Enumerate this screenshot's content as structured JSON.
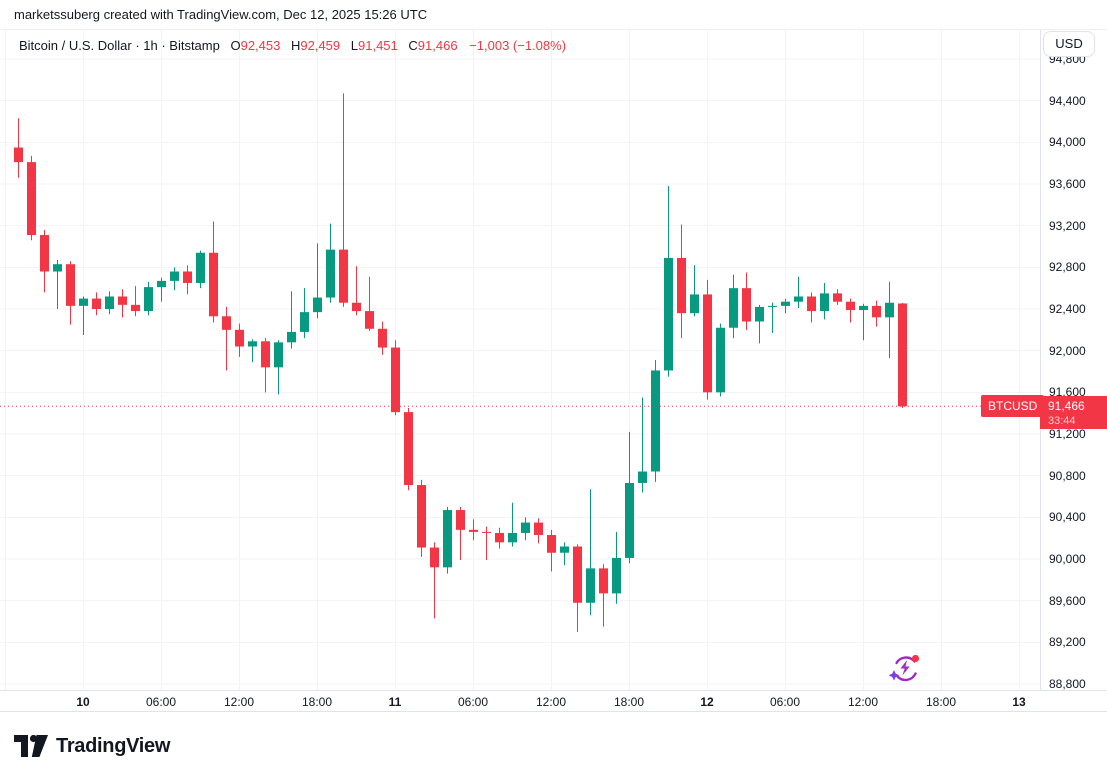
{
  "attribution": {
    "text": "marketssuberg created with TradingView.com, Dec 12, 2025 15:26 UTC"
  },
  "legend": {
    "title": "Bitcoin / U.S. Dollar · 1h · Bitstamp",
    "ohlc": [
      {
        "label": "O",
        "value": "92,453"
      },
      {
        "label": "H",
        "value": "92,459"
      },
      {
        "label": "L",
        "value": "91,451"
      },
      {
        "label": "C",
        "value": "91,466"
      }
    ],
    "change": "−1,003 (−1.08%)"
  },
  "currency_button": {
    "label": "USD"
  },
  "price_line": {
    "symbol_label": "BTCUSD",
    "price": "91,466",
    "countdown": "33:44",
    "value": 91466
  },
  "price_axis": {
    "labels": [
      "94,800",
      "94,400",
      "94,000",
      "93,600",
      "93,200",
      "92,800",
      "92,400",
      "92,000",
      "91,600",
      "91,200",
      "90,800",
      "90,400",
      "90,000",
      "89,600",
      "89,200",
      "88,800"
    ],
    "max": 94800,
    "min": 88800,
    "step": 400
  },
  "time_axis": {
    "ticks": [
      {
        "label": "10",
        "bold": true,
        "hour": 0
      },
      {
        "label": "06:00",
        "bold": false,
        "hour": 6
      },
      {
        "label": "12:00",
        "bold": false,
        "hour": 12
      },
      {
        "label": "18:00",
        "bold": false,
        "hour": 18
      },
      {
        "label": "11",
        "bold": true,
        "hour": 24
      },
      {
        "label": "06:00",
        "bold": false,
        "hour": 30
      },
      {
        "label": "12:00",
        "bold": false,
        "hour": 36
      },
      {
        "label": "18:00",
        "bold": false,
        "hour": 42
      },
      {
        "label": "12",
        "bold": true,
        "hour": 48
      },
      {
        "label": "06:00",
        "bold": false,
        "hour": 54
      },
      {
        "label": "12:00",
        "bold": false,
        "hour": 60
      },
      {
        "label": "18:00",
        "bold": false,
        "hour": 66
      },
      {
        "label": "13",
        "bold": true,
        "hour": 72
      }
    ],
    "grid_hour_start": -6,
    "grid_hour_end": 72,
    "grid_hour_step": 6
  },
  "footer": {
    "brand": "TradingView"
  },
  "colors": {
    "up": "#089981",
    "down": "#f23645",
    "grid": "#f1f3f8",
    "axis_text": "#131722",
    "border": "#e0e3eb",
    "price_line_red": "#f23645",
    "fab_purple": "#a12ac4",
    "fab_sparkle": "#7c3aed",
    "fab_dot": "#f23645"
  },
  "chart_data": {
    "type": "candlestick",
    "symbol": "BTCUSD",
    "title": "Bitcoin / U.S. Dollar",
    "exchange": "Bitstamp",
    "interval": "1h",
    "current": {
      "open": 92453,
      "high": 92459,
      "low": 91451,
      "close": 91466,
      "change": -1003,
      "change_pct": -1.08
    },
    "price_range": [
      88800,
      94800
    ],
    "columns": [
      "time",
      "open",
      "high",
      "low",
      "close"
    ],
    "candles": [
      [
        "Dec 9 19:00",
        93950,
        94230,
        93660,
        93810
      ],
      [
        "Dec 9 20:00",
        93810,
        93870,
        93060,
        93110
      ],
      [
        "Dec 9 21:00",
        93110,
        93160,
        92560,
        92760
      ],
      [
        "Dec 9 22:00",
        92760,
        92870,
        92400,
        92830
      ],
      [
        "Dec 9 23:00",
        92830,
        92860,
        92250,
        92430
      ],
      [
        "Dec 10 00:00",
        92430,
        92520,
        92150,
        92500
      ],
      [
        "Dec 10 01:00",
        92500,
        92560,
        92340,
        92400
      ],
      [
        "Dec 10 02:00",
        92400,
        92570,
        92350,
        92520
      ],
      [
        "Dec 10 03:00",
        92520,
        92590,
        92320,
        92440
      ],
      [
        "Dec 10 04:00",
        92440,
        92620,
        92330,
        92380
      ],
      [
        "Dec 10 05:00",
        92380,
        92660,
        92340,
        92610
      ],
      [
        "Dec 10 06:00",
        92610,
        92700,
        92470,
        92670
      ],
      [
        "Dec 10 07:00",
        92670,
        92800,
        92580,
        92760
      ],
      [
        "Dec 10 08:00",
        92760,
        92820,
        92540,
        92650
      ],
      [
        "Dec 10 09:00",
        92650,
        92960,
        92600,
        92940
      ],
      [
        "Dec 10 10:00",
        92940,
        93240,
        92270,
        92330
      ],
      [
        "Dec 10 11:00",
        92330,
        92420,
        91810,
        92200
      ],
      [
        "Dec 10 12:00",
        92200,
        92260,
        91940,
        92040
      ],
      [
        "Dec 10 13:00",
        92040,
        92110,
        91890,
        92090
      ],
      [
        "Dec 10 14:00",
        92090,
        92120,
        91600,
        91840
      ],
      [
        "Dec 10 15:00",
        91840,
        92100,
        91580,
        92080
      ],
      [
        "Dec 10 16:00",
        92080,
        92570,
        92020,
        92180
      ],
      [
        "Dec 10 17:00",
        92180,
        92600,
        92120,
        92370
      ],
      [
        "Dec 10 18:00",
        92370,
        93030,
        92310,
        92510
      ],
      [
        "Dec 10 19:00",
        92510,
        93220,
        92460,
        92970
      ],
      [
        "Dec 10 20:00",
        92970,
        94470,
        92420,
        92460
      ],
      [
        "Dec 10 21:00",
        92460,
        92810,
        92340,
        92380
      ],
      [
        "Dec 10 22:00",
        92380,
        92710,
        92190,
        92210
      ],
      [
        "Dec 10 23:00",
        92210,
        92280,
        91960,
        92030
      ],
      [
        "Dec 11 00:00",
        92030,
        92100,
        91380,
        91410
      ],
      [
        "Dec 11 01:00",
        91410,
        91450,
        90660,
        90710
      ],
      [
        "Dec 11 02:00",
        90710,
        90760,
        90020,
        90110
      ],
      [
        "Dec 11 03:00",
        90110,
        90160,
        89430,
        89920
      ],
      [
        "Dec 11 04:00",
        89920,
        90500,
        89860,
        90470
      ],
      [
        "Dec 11 05:00",
        90470,
        90500,
        89990,
        90280
      ],
      [
        "Dec 11 06:00",
        90280,
        90380,
        90180,
        90260
      ],
      [
        "Dec 11 07:00",
        90260,
        90310,
        89990,
        90250
      ],
      [
        "Dec 11 08:00",
        90250,
        90300,
        90100,
        90160
      ],
      [
        "Dec 11 09:00",
        90160,
        90540,
        90120,
        90250
      ],
      [
        "Dec 11 10:00",
        90250,
        90400,
        90180,
        90350
      ],
      [
        "Dec 11 11:00",
        90350,
        90390,
        90150,
        90230
      ],
      [
        "Dec 11 12:00",
        90230,
        90280,
        89880,
        90060
      ],
      [
        "Dec 11 13:00",
        90060,
        90160,
        89940,
        90120
      ],
      [
        "Dec 11 14:00",
        90120,
        90140,
        89300,
        89580
      ],
      [
        "Dec 11 15:00",
        89580,
        90670,
        89460,
        89910
      ],
      [
        "Dec 11 16:00",
        89910,
        89950,
        89350,
        89670
      ],
      [
        "Dec 11 17:00",
        89670,
        90260,
        89570,
        90010
      ],
      [
        "Dec 11 18:00",
        90010,
        91220,
        89960,
        90730
      ],
      [
        "Dec 11 19:00",
        90730,
        91550,
        90640,
        90840
      ],
      [
        "Dec 11 20:00",
        90840,
        91910,
        90740,
        91810
      ],
      [
        "Dec 11 21:00",
        91810,
        93580,
        91750,
        92890
      ],
      [
        "Dec 11 22:00",
        92890,
        93210,
        92120,
        92360
      ],
      [
        "Dec 11 23:00",
        92360,
        92820,
        92330,
        92540
      ],
      [
        "Dec 12 00:00",
        92540,
        92680,
        91530,
        91600
      ],
      [
        "Dec 12 01:00",
        91600,
        92260,
        91560,
        92220
      ],
      [
        "Dec 12 02:00",
        92220,
        92730,
        92120,
        92600
      ],
      [
        "Dec 12 03:00",
        92600,
        92750,
        92200,
        92280
      ],
      [
        "Dec 12 04:00",
        92280,
        92440,
        92070,
        92420
      ],
      [
        "Dec 12 05:00",
        92420,
        92460,
        92170,
        92430
      ],
      [
        "Dec 12 06:00",
        92430,
        92500,
        92360,
        92470
      ],
      [
        "Dec 12 07:00",
        92470,
        92710,
        92410,
        92520
      ],
      [
        "Dec 12 08:00",
        92520,
        92560,
        92270,
        92380
      ],
      [
        "Dec 12 09:00",
        92380,
        92650,
        92300,
        92550
      ],
      [
        "Dec 12 10:00",
        92550,
        92590,
        92440,
        92470
      ],
      [
        "Dec 12 11:00",
        92470,
        92500,
        92270,
        92390
      ],
      [
        "Dec 12 12:00",
        92390,
        92450,
        92100,
        92430
      ],
      [
        "Dec 12 13:00",
        92430,
        92480,
        92230,
        92320
      ],
      [
        "Dec 12 14:00",
        92320,
        92660,
        91930,
        92460
      ],
      [
        "Dec 12 15:00",
        92453,
        92459,
        91451,
        91466
      ]
    ]
  }
}
